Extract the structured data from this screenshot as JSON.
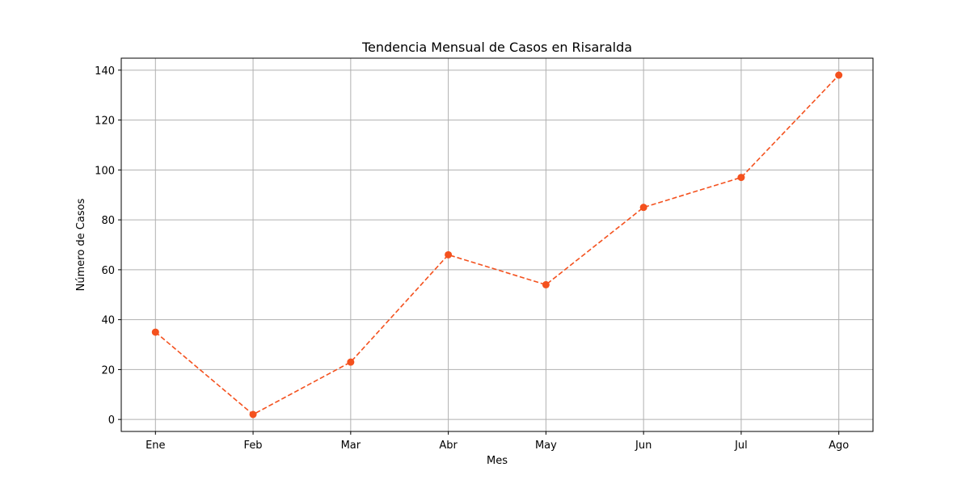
{
  "chart_data": {
    "type": "line",
    "title": "Tendencia Mensual de Casos en Risaralda",
    "xlabel": "Mes",
    "ylabel": "Número de Casos",
    "categories": [
      "Ene",
      "Feb",
      "Mar",
      "Abr",
      "May",
      "Jun",
      "Jul",
      "Ago"
    ],
    "series": [
      {
        "values": [
          35,
          2,
          23,
          66,
          54,
          85,
          97,
          138
        ],
        "color": "#f4511e",
        "line_style": "dashed",
        "marker": "circle"
      }
    ],
    "ylim": [
      -4.8,
      144.8
    ],
    "yticks": [
      0,
      20,
      40,
      60,
      80,
      100,
      120,
      140
    ],
    "grid": true,
    "legend": "none"
  }
}
